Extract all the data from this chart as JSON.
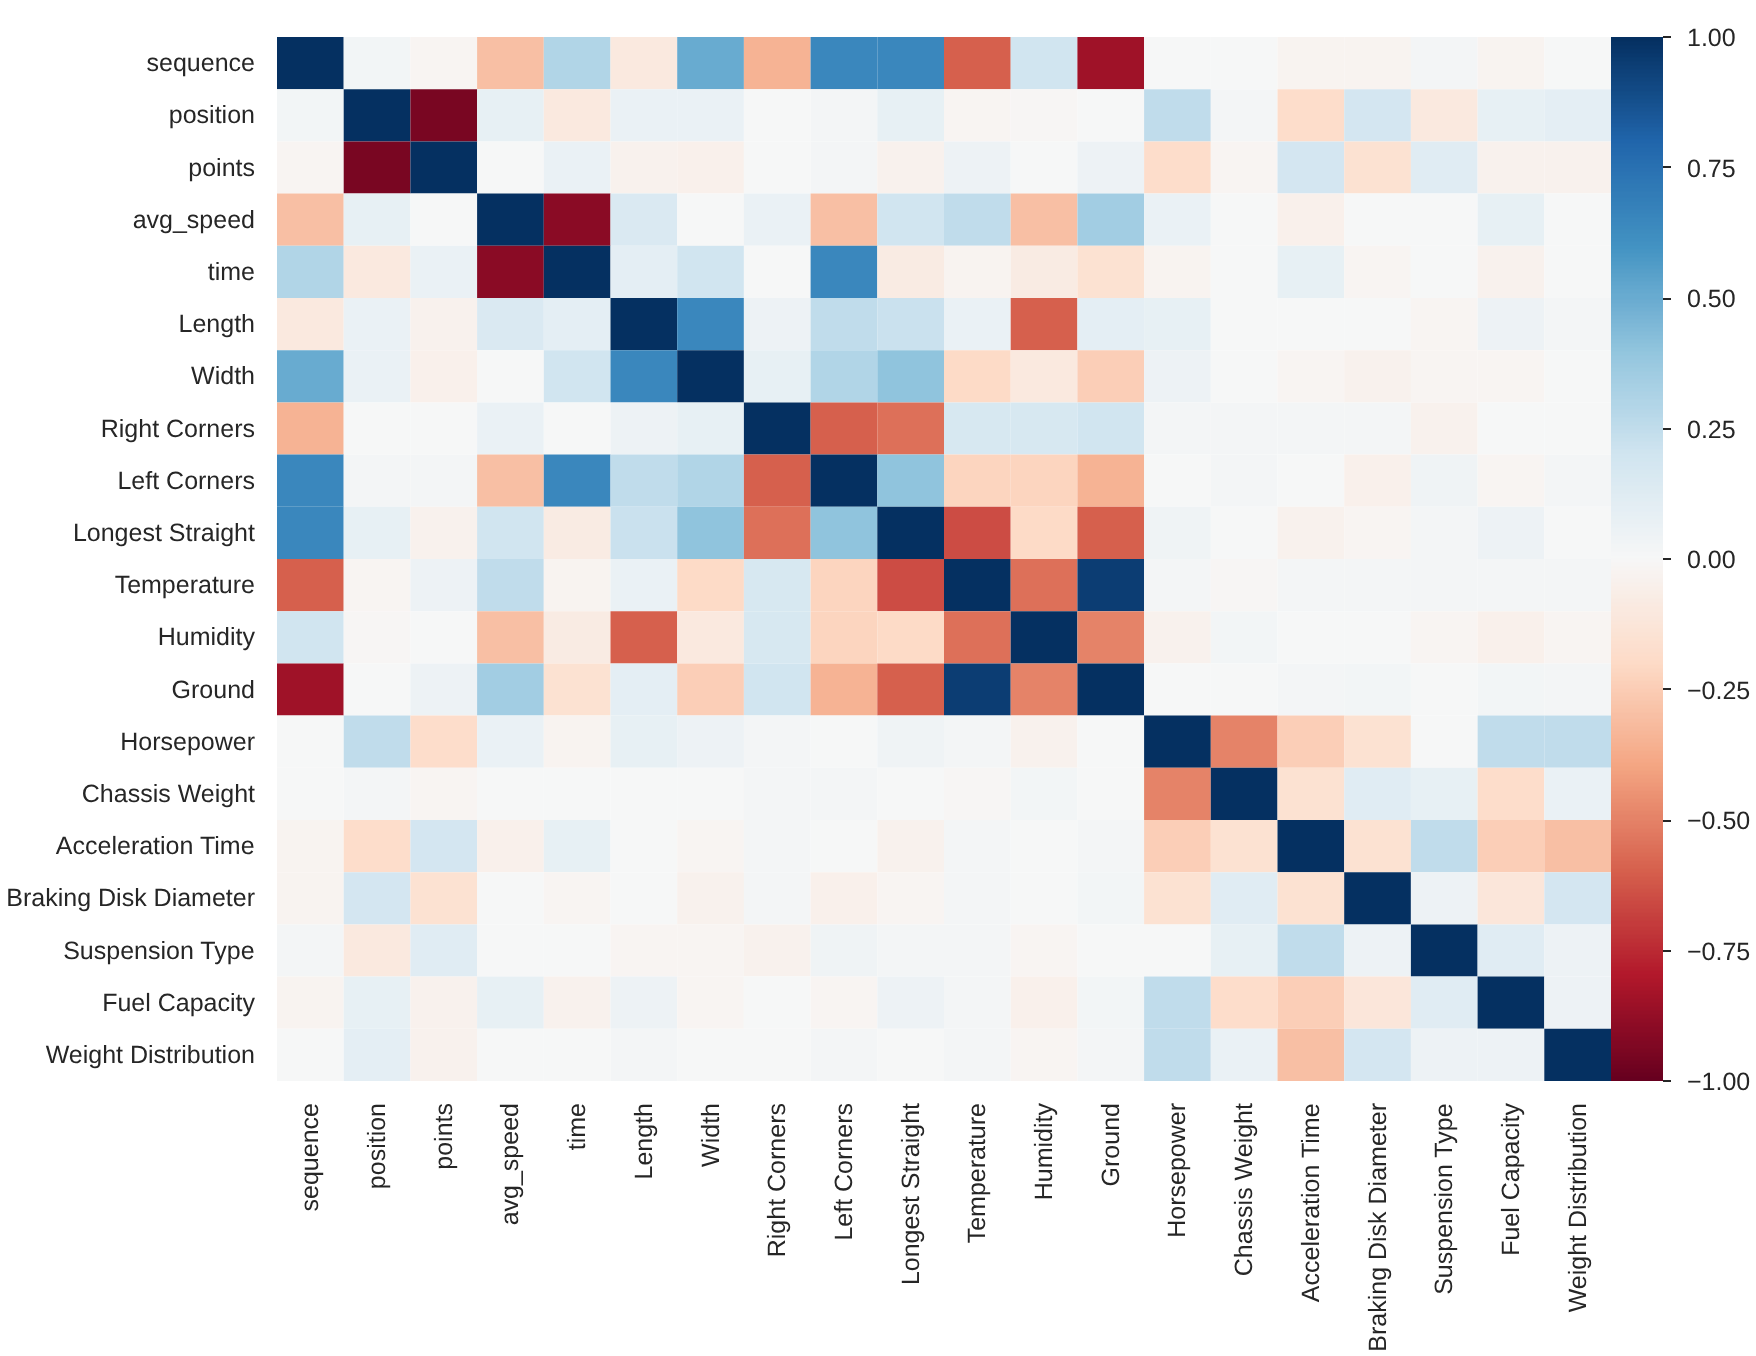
{
  "chart_data": {
    "type": "heatmap",
    "categories": [
      "sequence",
      "position",
      "points",
      "avg_speed",
      "time",
      "Length",
      "Width",
      "Right Corners",
      "Left Corners",
      "Longest Straight",
      "Temperature",
      "Humidity",
      "Ground",
      "Horsepower",
      "Chassis Weight",
      "Acceleration Time",
      "Braking Disk Diameter",
      "Suspension Type",
      "Fuel Capacity",
      "Weight Distribution"
    ],
    "y_categories": [
      "sequence",
      "position",
      "points",
      "avg_speed",
      "time",
      "Length",
      "Width",
      "Right Corners",
      "Left Corners",
      "Longest Straight",
      "Temperature",
      "Humidity",
      "Ground",
      "Horsepower",
      "Chassis Weight",
      "Acceleration Time",
      "Braking Disk Diameter",
      "Suspension Type",
      "Fuel Capacity",
      "Weight Distribution"
    ],
    "cells": [
      [
        1,
        0.03,
        -0.02,
        -0.3,
        0.3,
        -0.1,
        0.5,
        -0.35,
        0.65,
        0.65,
        -0.6,
        0.2,
        -0.85,
        0,
        0,
        -0.03,
        -0.03,
        0.02,
        -0.03,
        0
      ],
      [
        0.03,
        1,
        -0.95,
        0.08,
        -0.1,
        0.07,
        0.07,
        0,
        0.02,
        0.08,
        -0.02,
        -0.01,
        0,
        0.25,
        0.02,
        -0.18,
        0.18,
        -0.1,
        0.08,
        0.1
      ],
      [
        -0.02,
        -0.95,
        1,
        0,
        0.07,
        -0.04,
        -0.05,
        0,
        0.02,
        -0.04,
        0.05,
        0,
        0.05,
        -0.18,
        -0.02,
        0.18,
        -0.15,
        0.12,
        -0.04,
        -0.04
      ],
      [
        -0.3,
        0.08,
        0,
        1,
        -0.9,
        0.15,
        0,
        0.07,
        -0.3,
        0.2,
        0.25,
        -0.3,
        0.35,
        0.07,
        0,
        -0.05,
        0,
        0,
        0.08,
        0
      ],
      [
        0.3,
        -0.1,
        0.07,
        -0.9,
        1,
        0.1,
        0.2,
        0,
        0.65,
        -0.08,
        -0.03,
        -0.08,
        -0.15,
        -0.03,
        0,
        0.08,
        -0.02,
        0,
        -0.04,
        0
      ],
      [
        -0.1,
        0.07,
        -0.04,
        0.15,
        0.1,
        1,
        0.65,
        0.05,
        0.25,
        0.22,
        0.07,
        -0.6,
        0.1,
        0.08,
        0,
        0,
        0,
        -0.02,
        0.05,
        0.02
      ],
      [
        0.5,
        0.07,
        -0.05,
        0,
        0.2,
        0.65,
        1,
        0.08,
        0.3,
        0.4,
        -0.2,
        -0.1,
        -0.25,
        0.05,
        0,
        -0.02,
        -0.04,
        -0.02,
        -0.02,
        0
      ],
      [
        -0.35,
        0,
        0,
        0.07,
        0,
        0.05,
        0.08,
        1,
        -0.6,
        -0.55,
        0.17,
        0.17,
        0.2,
        0.02,
        0.02,
        0.02,
        0.02,
        -0.04,
        0,
        0
      ],
      [
        0.65,
        0.02,
        0.02,
        -0.3,
        0.65,
        0.25,
        0.3,
        -0.6,
        1,
        0.4,
        -0.22,
        -0.22,
        -0.35,
        0,
        0.02,
        0,
        -0.05,
        0.04,
        -0.02,
        0.02
      ],
      [
        0.65,
        0.08,
        -0.04,
        0.2,
        -0.08,
        0.22,
        0.4,
        -0.55,
        0.4,
        1,
        -0.65,
        -0.2,
        -0.6,
        0.04,
        0,
        -0.04,
        -0.02,
        0.02,
        0.05,
        0
      ],
      [
        -0.6,
        -0.02,
        0.05,
        0.25,
        -0.03,
        0.07,
        -0.2,
        0.17,
        -0.22,
        -0.65,
        1,
        -0.55,
        0.95,
        0.02,
        -0.01,
        0.02,
        0.02,
        0.02,
        0.02,
        0.02
      ],
      [
        0.2,
        -0.01,
        0,
        -0.3,
        -0.08,
        -0.6,
        -0.1,
        0.17,
        -0.22,
        -0.2,
        -0.55,
        1,
        -0.5,
        -0.04,
        0.03,
        0,
        0,
        -0.02,
        -0.05,
        -0.02
      ],
      [
        -0.85,
        0,
        0.05,
        0.35,
        -0.15,
        0.1,
        -0.25,
        0.2,
        -0.35,
        -0.6,
        0.95,
        -0.5,
        1,
        0,
        0,
        0.02,
        0.03,
        0,
        0.03,
        0.02
      ],
      [
        0,
        0.25,
        -0.18,
        0.07,
        -0.03,
        0.08,
        0.05,
        0.02,
        0,
        0.04,
        0.02,
        -0.04,
        0,
        1,
        -0.5,
        -0.25,
        -0.15,
        0,
        0.25,
        0.25
      ],
      [
        0,
        0.02,
        -0.02,
        0,
        0,
        0,
        0,
        0.02,
        0.02,
        0,
        -0.01,
        0.03,
        0,
        -0.5,
        1,
        -0.15,
        0.12,
        0.08,
        -0.18,
        0.07
      ],
      [
        -0.03,
        -0.18,
        0.18,
        -0.05,
        0.08,
        0,
        -0.02,
        0.02,
        0,
        -0.04,
        0.02,
        0,
        0.02,
        -0.25,
        -0.15,
        1,
        -0.15,
        0.25,
        -0.25,
        -0.3
      ],
      [
        -0.03,
        0.18,
        -0.15,
        0,
        -0.02,
        0,
        -0.04,
        0.02,
        -0.05,
        -0.02,
        0.02,
        0,
        0.03,
        -0.15,
        0.12,
        -0.15,
        1,
        0.05,
        -0.12,
        0.18
      ],
      [
        0.02,
        -0.1,
        0.12,
        0,
        0,
        -0.02,
        -0.02,
        -0.04,
        0.04,
        0.02,
        0.02,
        -0.02,
        0,
        0,
        0.08,
        0.25,
        0.05,
        1,
        0.12,
        0.05
      ],
      [
        -0.03,
        0.08,
        -0.04,
        0.08,
        -0.04,
        0.05,
        -0.02,
        0,
        -0.02,
        0.05,
        0.02,
        -0.05,
        0.03,
        0.25,
        -0.18,
        -0.25,
        -0.12,
        0.12,
        1,
        0.05
      ],
      [
        0,
        0.1,
        -0.04,
        0,
        0,
        0.02,
        0,
        0,
        0.02,
        0,
        0.02,
        -0.02,
        0.02,
        0.25,
        0.07,
        -0.3,
        0.18,
        0.05,
        0.05,
        1
      ]
    ],
    "clim": [
      -1,
      1
    ],
    "cticks": [
      {
        "value": -1,
        "label": "−1.00"
      },
      {
        "value": -0.75,
        "label": "−0.75"
      },
      {
        "value": -0.5,
        "label": "−0.50"
      },
      {
        "value": -0.25,
        "label": "−0.25"
      },
      {
        "value": 0,
        "label": "0.00"
      },
      {
        "value": 0.25,
        "label": "0.25"
      },
      {
        "value": 0.5,
        "label": "0.50"
      },
      {
        "value": 0.75,
        "label": "0.75"
      },
      {
        "value": 1,
        "label": "1.00"
      }
    ]
  }
}
